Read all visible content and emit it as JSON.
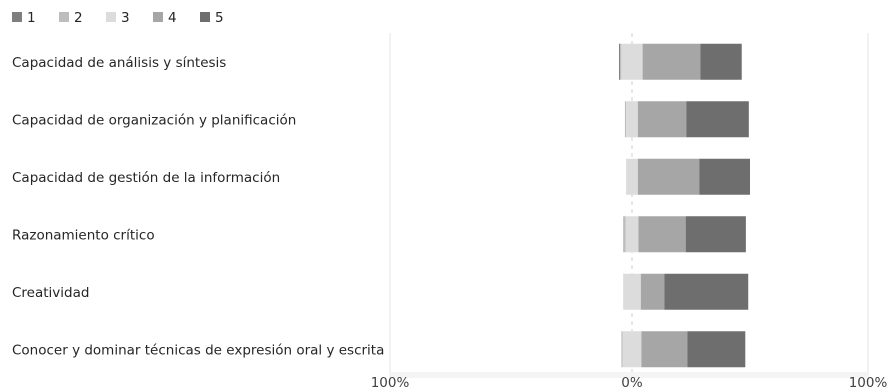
{
  "chart_data": {
    "type": "bar",
    "orientation": "horizontal",
    "stacked": "diverging",
    "legend": [
      "1",
      "2",
      "3",
      "4",
      "5"
    ],
    "legend_position": "top-left",
    "categories": [
      "Capacidad de análisis y síntesis",
      "Capacidad de organización y planificación",
      "Capacidad de gestión de la información",
      "Razonamiento crítico",
      "Creatividad",
      "Conocer y dominar técnicas de expresión oral y escrita"
    ],
    "series": [
      {
        "name": "1",
        "values": [
          0.5,
          0.0,
          0.0,
          0.0,
          0.0,
          0.0
        ]
      },
      {
        "name": "2",
        "values": [
          0.5,
          0.5,
          0.0,
          1.0,
          0.0,
          0.5
        ]
      },
      {
        "name": "3",
        "values": [
          9.0,
          5.0,
          5.0,
          5.5,
          7.5,
          8.0
        ]
      },
      {
        "name": "4",
        "values": [
          24.5,
          20.5,
          26.0,
          20.0,
          10.0,
          19.5
        ]
      },
      {
        "name": "5",
        "values": [
          17.5,
          26.5,
          21.5,
          25.5,
          35.5,
          24.5
        ]
      }
    ],
    "xlim": [
      -100,
      100
    ],
    "x_tick_labels": [
      "100%",
      "0%",
      "100%"
    ],
    "grid": true,
    "colors": [
      "#7f7f7f",
      "#bdbdbd",
      "#dcdcdc",
      "#a6a6a6",
      "#6e6e6e"
    ]
  }
}
